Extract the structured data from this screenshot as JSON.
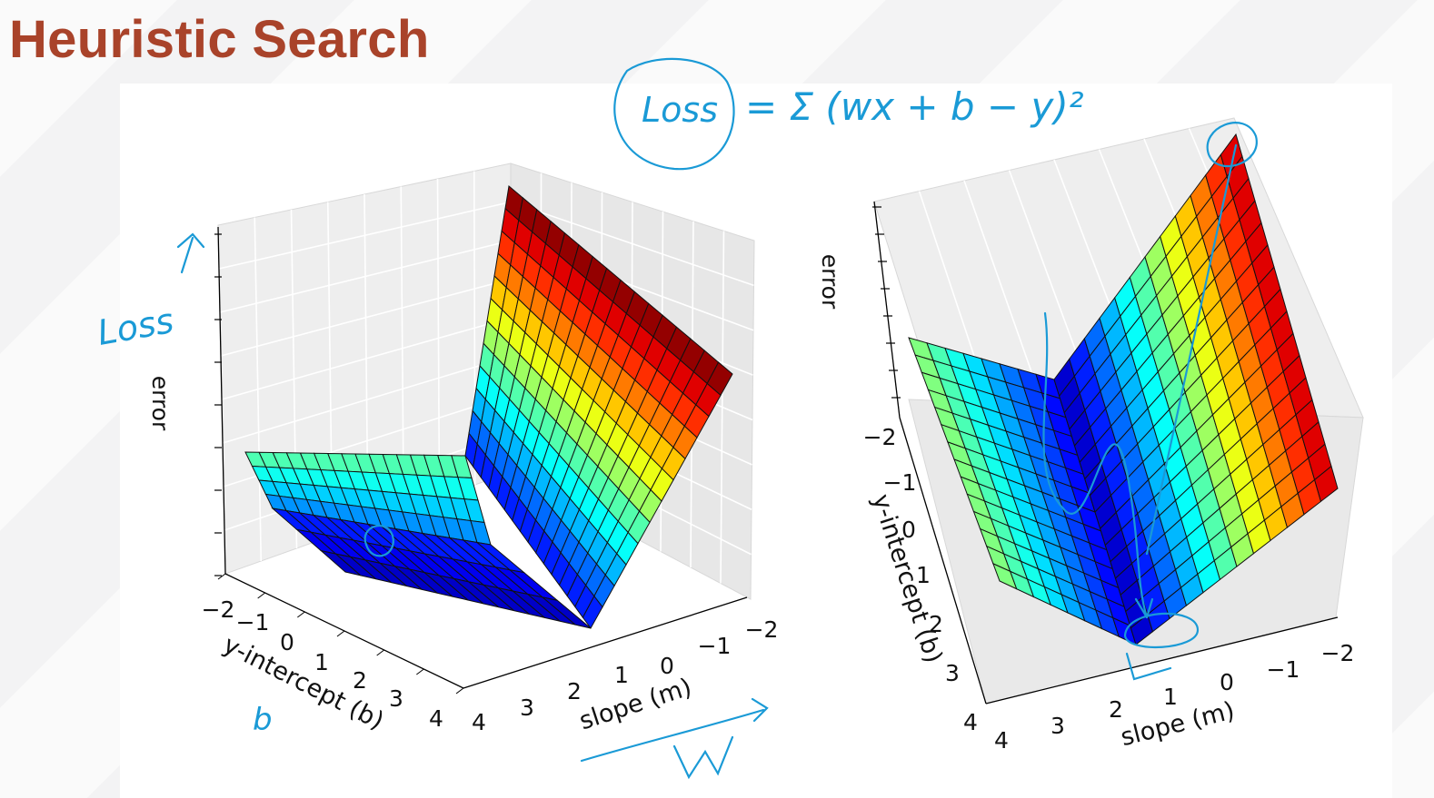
{
  "slide": {
    "title": "Heuristic Search"
  },
  "annotations": {
    "loss_label": "Loss",
    "loss_equation": "= Σ (wx + b − y)²",
    "loss_equation_lhs": "Loss",
    "b_label": "b",
    "w_label": "W",
    "colors": {
      "ink": "#1a9ad6",
      "title": "#a9432a"
    }
  },
  "chart_data": [
    {
      "type": "surface",
      "xlabel": "slope (m)",
      "ylabel": "y-intercept (b)",
      "zlabel": "error",
      "x_ticks": [
        "−2",
        "−1",
        "0",
        "1",
        "2",
        "3",
        "4"
      ],
      "y_ticks": [
        "−2",
        "−1",
        "0",
        "1",
        "2",
        "3",
        "4"
      ],
      "xlim": [
        -2,
        4
      ],
      "ylim": [
        -2,
        4
      ],
      "colormap": "jet",
      "grid": true
    },
    {
      "type": "surface",
      "xlabel": "slope (m)",
      "ylabel": "y-intercept (b)",
      "zlabel": "error",
      "x_ticks": [
        "−2",
        "−1",
        "0",
        "1",
        "2",
        "3",
        "4"
      ],
      "y_ticks": [
        "−2",
        "−1",
        "0",
        "1",
        "2",
        "3",
        "4"
      ],
      "xlim": [
        -2,
        4
      ],
      "ylim": [
        -2,
        4
      ],
      "colormap": "jet",
      "grid": true
    }
  ]
}
